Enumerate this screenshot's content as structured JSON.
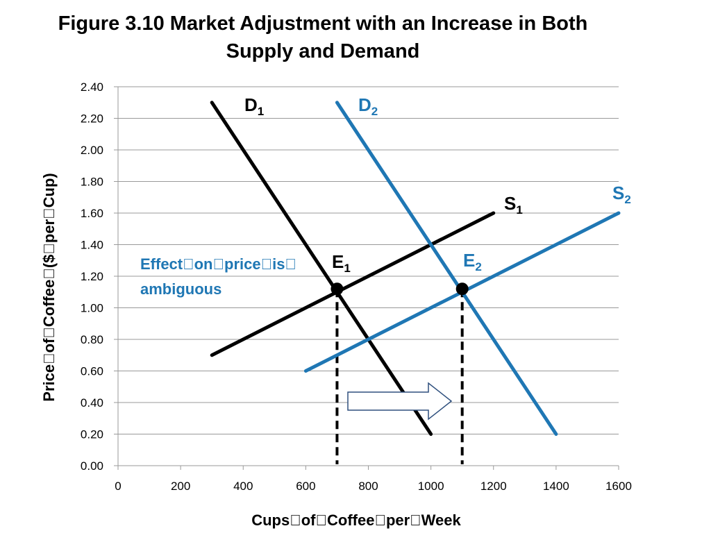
{
  "title_line1": "Figure 3.10 Market Adjustment with an Increase in Both",
  "title_line2": "Supply and Demand",
  "colors": {
    "black": "#000000",
    "blue": "#1f77b4",
    "grid": "#999999",
    "arrow": "#2e4f7d"
  },
  "chart_data": {
    "type": "line",
    "xlabel": "Cups\u0000of\u0000Coffee\u0000per\u0000Week",
    "ylabel": "Price\u0000of\u0000Coffee\u0000($\u0000per\u0000Cup)",
    "xlim": [
      0,
      1600
    ],
    "ylim": [
      0,
      2.4
    ],
    "x_ticks": [
      0,
      200,
      400,
      600,
      800,
      1000,
      1200,
      1400,
      1600
    ],
    "y_ticks": [
      "0.00",
      "0.20",
      "0.40",
      "0.60",
      "0.80",
      "1.00",
      "1.20",
      "1.40",
      "1.60",
      "1.80",
      "2.00",
      "2.20",
      "2.40"
    ],
    "grid": "horizontal",
    "series": [
      {
        "label": "D",
        "sub": "1",
        "color": "black",
        "points": [
          [
            300,
            2.3
          ],
          [
            1000,
            0.2
          ]
        ]
      },
      {
        "label": "S",
        "sub": "1",
        "color": "black",
        "points": [
          [
            300,
            0.7
          ],
          [
            1200,
            1.6
          ]
        ]
      },
      {
        "label": "D",
        "sub": "2",
        "color": "blue",
        "points": [
          [
            700,
            2.3
          ],
          [
            1400,
            0.2
          ]
        ]
      },
      {
        "label": "S",
        "sub": "2",
        "color": "blue",
        "points": [
          [
            600,
            0.6
          ],
          [
            1600,
            1.6
          ]
        ]
      }
    ],
    "equilibria": [
      {
        "label": "E",
        "sub": "1",
        "x": 700,
        "y": 1.12
      },
      {
        "label": "E",
        "sub": "2",
        "x": 1100,
        "y": 1.12
      }
    ],
    "annotation_line1": "Effect\u0000on\u0000price\u0000is\u0000",
    "annotation_line2": "ambiguous"
  }
}
